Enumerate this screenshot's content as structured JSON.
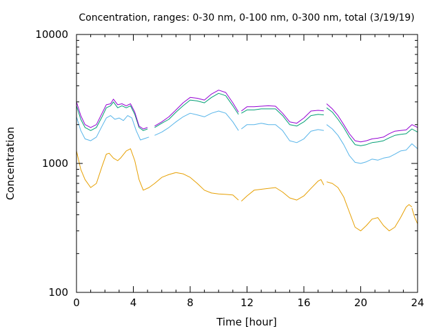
{
  "chart_data": {
    "type": "line",
    "title": "Concentration, ranges: 0-30 nm, 0-100 nm, 0-300 nm, total (3/19/19)",
    "xlabel": "Time [hour]",
    "ylabel": "Concentration",
    "xlim": [
      0,
      24
    ],
    "ylim": [
      100,
      10000
    ],
    "yscale": "log",
    "grid": false,
    "x_ticks": [
      0,
      4,
      8,
      12,
      16,
      20,
      24
    ],
    "y_ticks": [
      100,
      1000,
      10000
    ],
    "series": [
      {
        "color": "#e69f00",
        "segments": [
          [
            [
              0,
              1250
            ],
            [
              0.3,
              900
            ],
            [
              0.6,
              750
            ],
            [
              1.0,
              650
            ],
            [
              1.4,
              700
            ],
            [
              1.8,
              950
            ],
            [
              2.1,
              1180
            ],
            [
              2.3,
              1200
            ],
            [
              2.6,
              1100
            ],
            [
              2.9,
              1050
            ],
            [
              3.1,
              1100
            ],
            [
              3.5,
              1250
            ],
            [
              3.8,
              1300
            ],
            [
              4.1,
              1050
            ],
            [
              4.4,
              750
            ],
            [
              4.7,
              620
            ],
            [
              5.1,
              650
            ],
            [
              5.5,
              700
            ],
            [
              6.0,
              780
            ],
            [
              6.5,
              820
            ],
            [
              7.0,
              850
            ],
            [
              7.5,
              830
            ],
            [
              8.0,
              780
            ],
            [
              8.5,
              700
            ],
            [
              9.0,
              620
            ],
            [
              9.5,
              590
            ],
            [
              10.0,
              580
            ],
            [
              10.5,
              575
            ],
            [
              11.0,
              570
            ],
            [
              11.4,
              520
            ]
          ],
          [
            [
              11.6,
              510
            ],
            [
              12.0,
              560
            ],
            [
              12.5,
              620
            ],
            [
              13.0,
              630
            ],
            [
              13.5,
              640
            ],
            [
              14.0,
              650
            ],
            [
              14.5,
              600
            ],
            [
              15.0,
              540
            ],
            [
              15.5,
              520
            ],
            [
              16.0,
              560
            ],
            [
              16.5,
              640
            ],
            [
              17.0,
              730
            ],
            [
              17.2,
              750
            ],
            [
              17.4,
              680
            ]
          ],
          [
            [
              17.6,
              720
            ],
            [
              18.0,
              700
            ],
            [
              18.4,
              650
            ],
            [
              18.8,
              550
            ],
            [
              19.2,
              420
            ],
            [
              19.6,
              320
            ],
            [
              20.0,
              300
            ],
            [
              20.4,
              330
            ],
            [
              20.8,
              370
            ],
            [
              21.2,
              380
            ],
            [
              21.6,
              330
            ],
            [
              22.0,
              300
            ],
            [
              22.4,
              320
            ],
            [
              22.8,
              380
            ],
            [
              23.2,
              460
            ],
            [
              23.4,
              480
            ],
            [
              23.6,
              460
            ]
          ],
          [
            [
              23.6,
              450
            ],
            [
              23.8,
              380
            ],
            [
              24.0,
              340
            ]
          ]
        ]
      },
      {
        "color": "#56b4e9",
        "segments": [
          [
            [
              0,
              2300
            ],
            [
              0.3,
              1800
            ],
            [
              0.6,
              1550
            ],
            [
              1.0,
              1500
            ],
            [
              1.4,
              1600
            ],
            [
              1.8,
              1950
            ],
            [
              2.1,
              2250
            ],
            [
              2.4,
              2350
            ],
            [
              2.7,
              2200
            ],
            [
              3.0,
              2250
            ],
            [
              3.3,
              2150
            ],
            [
              3.6,
              2350
            ],
            [
              3.9,
              2250
            ],
            [
              4.2,
              1800
            ],
            [
              4.5,
              1520
            ],
            [
              4.8,
              1560
            ],
            [
              5.1,
              1600
            ]
          ],
          [
            [
              5.5,
              1650
            ],
            [
              6.0,
              1750
            ],
            [
              6.5,
              1900
            ],
            [
              7.0,
              2100
            ],
            [
              7.5,
              2300
            ],
            [
              8.0,
              2450
            ],
            [
              8.5,
              2380
            ],
            [
              9.0,
              2300
            ],
            [
              9.5,
              2450
            ],
            [
              10.0,
              2550
            ],
            [
              10.5,
              2450
            ],
            [
              11.0,
              2100
            ],
            [
              11.4,
              1800
            ]
          ],
          [
            [
              11.6,
              1850
            ],
            [
              12.0,
              2000
            ],
            [
              12.5,
              2000
            ],
            [
              13.0,
              2050
            ],
            [
              13.5,
              2000
            ],
            [
              14.0,
              2000
            ],
            [
              14.5,
              1800
            ],
            [
              15.0,
              1500
            ],
            [
              15.5,
              1450
            ],
            [
              16.0,
              1550
            ],
            [
              16.5,
              1780
            ],
            [
              17.0,
              1830
            ],
            [
              17.4,
              1800
            ]
          ],
          [
            [
              17.6,
              2000
            ],
            [
              18.0,
              1850
            ],
            [
              18.4,
              1650
            ],
            [
              18.8,
              1400
            ],
            [
              19.2,
              1150
            ],
            [
              19.6,
              1020
            ],
            [
              20.0,
              1000
            ],
            [
              20.4,
              1030
            ],
            [
              20.8,
              1080
            ],
            [
              21.2,
              1060
            ],
            [
              21.6,
              1100
            ],
            [
              22.0,
              1120
            ],
            [
              22.4,
              1180
            ],
            [
              22.8,
              1250
            ],
            [
              23.2,
              1270
            ],
            [
              23.6,
              1420
            ],
            [
              24.0,
              1300
            ]
          ]
        ]
      },
      {
        "color": "#009e73",
        "segments": [
          [
            [
              0,
              2800
            ],
            [
              0.3,
              2200
            ],
            [
              0.6,
              1900
            ],
            [
              1.0,
              1800
            ],
            [
              1.4,
              1900
            ],
            [
              1.8,
              2300
            ],
            [
              2.1,
              2700
            ],
            [
              2.4,
              2800
            ],
            [
              2.6,
              3000
            ],
            [
              2.9,
              2700
            ],
            [
              3.2,
              2800
            ],
            [
              3.5,
              2700
            ],
            [
              3.8,
              2800
            ],
            [
              4.1,
              2400
            ],
            [
              4.4,
              1900
            ],
            [
              4.7,
              1800
            ],
            [
              5.0,
              1850
            ]
          ],
          [
            [
              5.5,
              1900
            ],
            [
              6.0,
              2050
            ],
            [
              6.5,
              2200
            ],
            [
              7.0,
              2500
            ],
            [
              7.5,
              2800
            ],
            [
              8.0,
              3100
            ],
            [
              8.5,
              3050
            ],
            [
              9.0,
              2950
            ],
            [
              9.5,
              3250
            ],
            [
              10.0,
              3500
            ],
            [
              10.5,
              3350
            ],
            [
              11.0,
              2800
            ],
            [
              11.4,
              2400
            ]
          ],
          [
            [
              11.6,
              2450
            ],
            [
              12.0,
              2600
            ],
            [
              12.5,
              2600
            ],
            [
              13.0,
              2650
            ],
            [
              13.5,
              2650
            ],
            [
              14.0,
              2650
            ],
            [
              14.5,
              2350
            ],
            [
              15.0,
              2000
            ],
            [
              15.5,
              1950
            ],
            [
              16.0,
              2100
            ],
            [
              16.5,
              2350
            ],
            [
              17.0,
              2400
            ],
            [
              17.4,
              2380
            ]
          ],
          [
            [
              17.6,
              2700
            ],
            [
              18.0,
              2500
            ],
            [
              18.4,
              2200
            ],
            [
              18.8,
              1900
            ],
            [
              19.2,
              1600
            ],
            [
              19.6,
              1400
            ],
            [
              20.0,
              1370
            ],
            [
              20.4,
              1400
            ],
            [
              20.8,
              1450
            ],
            [
              21.2,
              1470
            ],
            [
              21.6,
              1500
            ],
            [
              22.0,
              1580
            ],
            [
              22.4,
              1650
            ],
            [
              22.8,
              1680
            ],
            [
              23.2,
              1700
            ],
            [
              23.6,
              1850
            ],
            [
              24.0,
              1750
            ]
          ]
        ]
      },
      {
        "color": "#9400d3",
        "segments": [
          [
            [
              0,
              3000
            ],
            [
              0.3,
              2350
            ],
            [
              0.6,
              2000
            ],
            [
              1.0,
              1900
            ],
            [
              1.4,
              2000
            ],
            [
              1.8,
              2450
            ],
            [
              2.1,
              2850
            ],
            [
              2.4,
              2900
            ],
            [
              2.6,
              3150
            ],
            [
              2.9,
              2850
            ],
            [
              3.2,
              2900
            ],
            [
              3.5,
              2800
            ],
            [
              3.8,
              2900
            ],
            [
              4.1,
              2500
            ],
            [
              4.4,
              1950
            ],
            [
              4.7,
              1850
            ],
            [
              5.0,
              1900
            ]
          ],
          [
            [
              5.5,
              1950
            ],
            [
              6.0,
              2100
            ],
            [
              6.5,
              2300
            ],
            [
              7.0,
              2600
            ],
            [
              7.5,
              2950
            ],
            [
              8.0,
              3250
            ],
            [
              8.5,
              3200
            ],
            [
              9.0,
              3100
            ],
            [
              9.5,
              3450
            ],
            [
              10.0,
              3700
            ],
            [
              10.5,
              3550
            ],
            [
              11.0,
              2950
            ],
            [
              11.4,
              2500
            ]
          ],
          [
            [
              11.6,
              2550
            ],
            [
              12.0,
              2750
            ],
            [
              12.5,
              2750
            ],
            [
              13.0,
              2780
            ],
            [
              13.5,
              2800
            ],
            [
              14.0,
              2780
            ],
            [
              14.5,
              2450
            ],
            [
              15.0,
              2100
            ],
            [
              15.5,
              2050
            ],
            [
              16.0,
              2250
            ],
            [
              16.5,
              2550
            ],
            [
              17.0,
              2580
            ],
            [
              17.4,
              2560
            ]
          ],
          [
            [
              17.6,
              2900
            ],
            [
              18.0,
              2650
            ],
            [
              18.4,
              2350
            ],
            [
              18.8,
              2000
            ],
            [
              19.2,
              1700
            ],
            [
              19.6,
              1500
            ],
            [
              20.0,
              1470
            ],
            [
              20.4,
              1500
            ],
            [
              20.8,
              1550
            ],
            [
              21.2,
              1570
            ],
            [
              21.6,
              1600
            ],
            [
              22.0,
              1700
            ],
            [
              22.4,
              1780
            ],
            [
              22.8,
              1800
            ],
            [
              23.2,
              1820
            ],
            [
              23.6,
              2000
            ],
            [
              24.0,
              1900
            ]
          ]
        ]
      }
    ]
  }
}
